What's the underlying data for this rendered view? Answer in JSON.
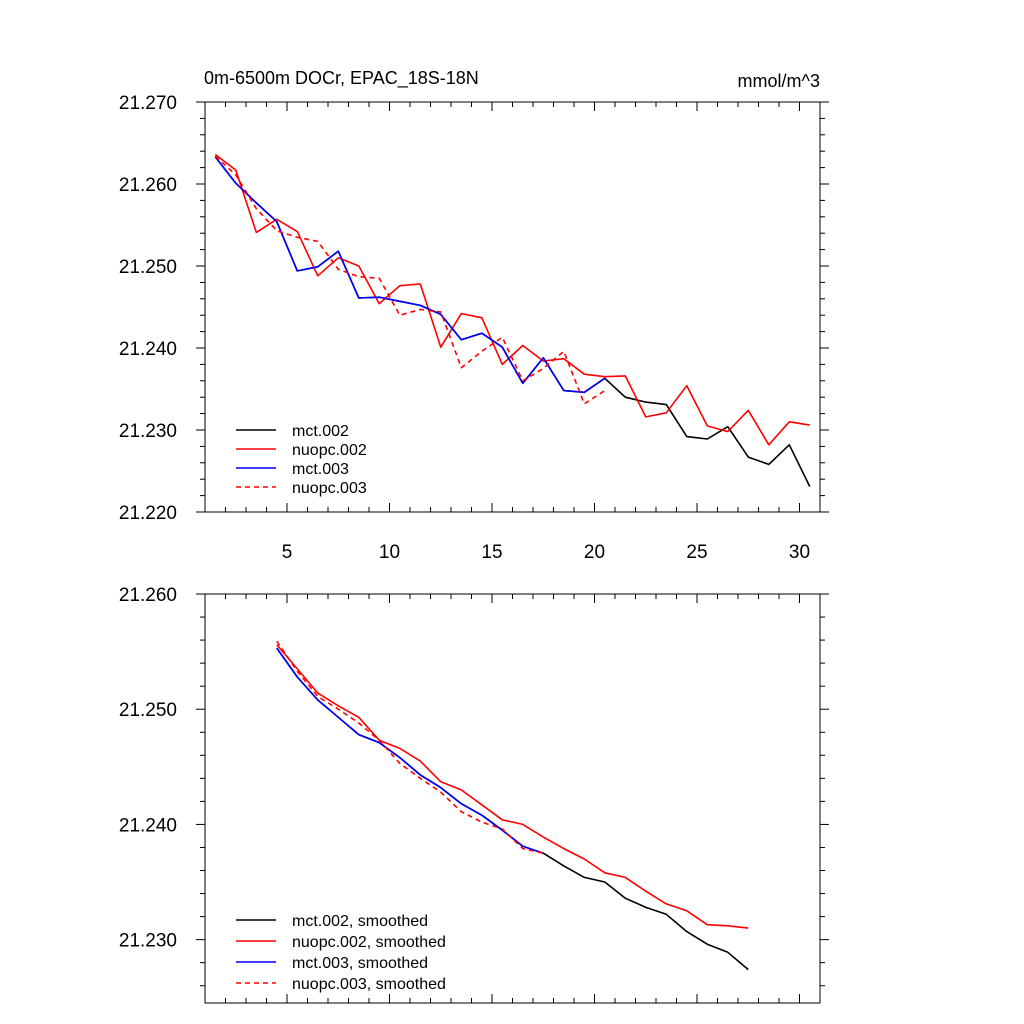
{
  "chart_data": [
    {
      "type": "line",
      "title": "0m-6500m DOCr, EPAC_18S-18N",
      "units": "mmol/m^3",
      "xlim": [
        1,
        31
      ],
      "ylim": [
        21.22,
        21.27
      ],
      "x_ticks": [
        5,
        10,
        15,
        20,
        25,
        30
      ],
      "x_tick_labels": [
        "5",
        "10",
        "15",
        "20",
        "25",
        "30"
      ],
      "y_ticks": [
        21.22,
        21.23,
        21.24,
        21.25,
        21.26,
        21.27
      ],
      "y_tick_labels": [
        "21.220",
        "21.230",
        "21.240",
        "21.250",
        "21.260",
        "21.270"
      ],
      "legend_position": "bottom-left",
      "series": [
        {
          "name": "mct.002",
          "color": "#000000",
          "dash": "solid",
          "x": [
            1.5,
            2.5,
            3.5,
            4.5,
            5.5,
            6.5,
            7.5,
            8.5,
            9.5,
            10.5,
            11.5,
            12.5,
            13.5,
            14.5,
            15.5,
            16.5,
            17.5,
            18.5,
            19.5,
            20.5,
            21.5,
            22.5,
            23.5,
            24.5,
            25.5,
            26.5,
            27.5,
            28.5,
            29.5,
            30.5
          ],
          "values": [
            21.2633,
            21.2601,
            21.2577,
            21.2554,
            21.2494,
            21.2499,
            21.2518,
            21.2461,
            21.2462,
            21.2457,
            21.2452,
            21.2441,
            21.241,
            21.2418,
            21.2401,
            21.2357,
            21.2388,
            21.2348,
            21.2346,
            21.2363,
            21.234,
            21.2334,
            21.2331,
            21.2292,
            21.2289,
            21.2304,
            21.2267,
            21.2258,
            21.2282,
            21.2231
          ]
        },
        {
          "name": "nuopc.002",
          "color": "#ff0000",
          "dash": "solid",
          "x": [
            1.5,
            2.5,
            3.5,
            4.5,
            5.5,
            6.5,
            7.5,
            8.5,
            9.5,
            10.5,
            11.5,
            12.5,
            13.5,
            14.5,
            15.5,
            16.5,
            17.5,
            18.5,
            19.5,
            20.5,
            21.5,
            22.5,
            23.5,
            24.5,
            25.5,
            26.5,
            27.5,
            28.5,
            29.5,
            30.5
          ],
          "values": [
            21.2636,
            21.2617,
            21.2541,
            21.2557,
            21.2542,
            21.2488,
            21.251,
            21.25,
            21.2454,
            21.2476,
            21.2478,
            21.2401,
            21.2442,
            21.2437,
            21.238,
            21.2403,
            21.2384,
            21.2387,
            21.2368,
            21.2365,
            21.2366,
            21.2316,
            21.2321,
            21.2354,
            21.2305,
            21.2298,
            21.2324,
            21.2282,
            21.231,
            21.2306
          ]
        },
        {
          "name": "mct.003",
          "color": "#0000ff",
          "dash": "solid",
          "x": [
            1.5,
            2.5,
            3.5,
            4.5,
            5.5,
            6.5,
            7.5,
            8.5,
            9.5,
            10.5,
            11.5,
            12.5,
            13.5,
            14.5,
            15.5,
            16.5,
            17.5,
            18.5,
            19.5,
            20.5
          ],
          "values": [
            21.2633,
            21.2601,
            21.2577,
            21.2554,
            21.2494,
            21.2499,
            21.2518,
            21.2461,
            21.2462,
            21.2457,
            21.2452,
            21.2441,
            21.241,
            21.2418,
            21.2401,
            21.2357,
            21.2388,
            21.2348,
            21.2346,
            21.2363
          ]
        },
        {
          "name": "nuopc.003",
          "color": "#ff0000",
          "dash": "dashed",
          "x": [
            1.5,
            2.5,
            3.5,
            4.5,
            5.5,
            6.5,
            7.5,
            8.5,
            9.5,
            10.5,
            11.5,
            12.5,
            13.5,
            14.5,
            15.5,
            16.5,
            17.5,
            18.5,
            19.5,
            20.5
          ],
          "values": [
            21.2634,
            21.2611,
            21.257,
            21.2543,
            21.2535,
            21.253,
            21.2496,
            21.2487,
            21.2485,
            21.244,
            21.2447,
            21.2444,
            21.2376,
            21.2396,
            21.2413,
            21.236,
            21.2375,
            21.2396,
            21.2332,
            21.2348
          ]
        }
      ]
    },
    {
      "type": "line",
      "title": "",
      "xlim": [
        1,
        31
      ],
      "ylim": [
        21.2245,
        21.26
      ],
      "x_ticks": [
        5,
        10,
        15,
        20,
        25,
        30
      ],
      "y_ticks": [
        21.23,
        21.24,
        21.25,
        21.26
      ],
      "y_tick_labels": [
        "21.230",
        "21.240",
        "21.250",
        "21.260"
      ],
      "legend_position": "bottom-left",
      "series": [
        {
          "name": "mct.002, smoothed",
          "color": "#000000",
          "dash": "solid",
          "x": [
            4.5,
            5.5,
            6.5,
            7.5,
            8.5,
            9.5,
            10.5,
            11.5,
            12.5,
            13.5,
            14.5,
            15.5,
            16.5,
            17.5,
            18.5,
            19.5,
            20.5,
            21.5,
            22.5,
            23.5,
            24.5,
            25.5,
            26.5,
            27.5
          ],
          "values": [
            21.2553,
            21.2528,
            21.2508,
            21.2493,
            21.2478,
            21.2471,
            21.2458,
            21.2443,
            21.2432,
            21.2418,
            21.2408,
            21.2395,
            21.2381,
            21.2375,
            21.2364,
            21.2354,
            21.235,
            21.2336,
            21.2328,
            21.2322,
            21.2307,
            21.2296,
            21.2289,
            21.2274
          ]
        },
        {
          "name": "nuopc.002, smoothed",
          "color": "#ff0000",
          "dash": "solid",
          "x": [
            4.5,
            5.5,
            6.5,
            7.5,
            8.5,
            9.5,
            10.5,
            11.5,
            12.5,
            13.5,
            14.5,
            15.5,
            16.5,
            17.5,
            18.5,
            19.5,
            20.5,
            21.5,
            22.5,
            23.5,
            24.5,
            25.5,
            26.5,
            27.5
          ],
          "values": [
            21.2556,
            21.2535,
            21.2514,
            21.2503,
            21.2493,
            21.2473,
            21.2466,
            21.2455,
            21.2437,
            21.243,
            21.2417,
            21.2404,
            21.24,
            21.2389,
            21.2379,
            21.237,
            21.2358,
            21.2354,
            21.2342,
            21.2331,
            21.2325,
            21.2313,
            21.2312,
            21.231
          ]
        },
        {
          "name": "mct.003, smoothed",
          "color": "#0000ff",
          "dash": "solid",
          "x": [
            4.5,
            5.5,
            6.5,
            7.5,
            8.5,
            9.5,
            10.5,
            11.5,
            12.5,
            13.5,
            14.5,
            15.5,
            16.5,
            17.5
          ],
          "values": [
            21.2553,
            21.2528,
            21.2508,
            21.2493,
            21.2478,
            21.2471,
            21.2458,
            21.2443,
            21.2432,
            21.2418,
            21.2408,
            21.2395,
            21.2381,
            21.2375
          ]
        },
        {
          "name": "nuopc.003, smoothed",
          "color": "#ff0000",
          "dash": "dashed",
          "x": [
            4.5,
            5.5,
            6.5,
            7.5,
            8.5,
            9.5,
            10.5,
            11.5,
            12.5,
            13.5,
            14.5,
            15.5,
            16.5,
            17.5
          ],
          "values": [
            21.2559,
            21.2533,
            21.2511,
            21.25,
            21.2488,
            21.2473,
            21.2453,
            21.244,
            21.2428,
            21.2411,
            21.2402,
            21.2396,
            21.2379,
            21.2375
          ]
        }
      ]
    }
  ]
}
